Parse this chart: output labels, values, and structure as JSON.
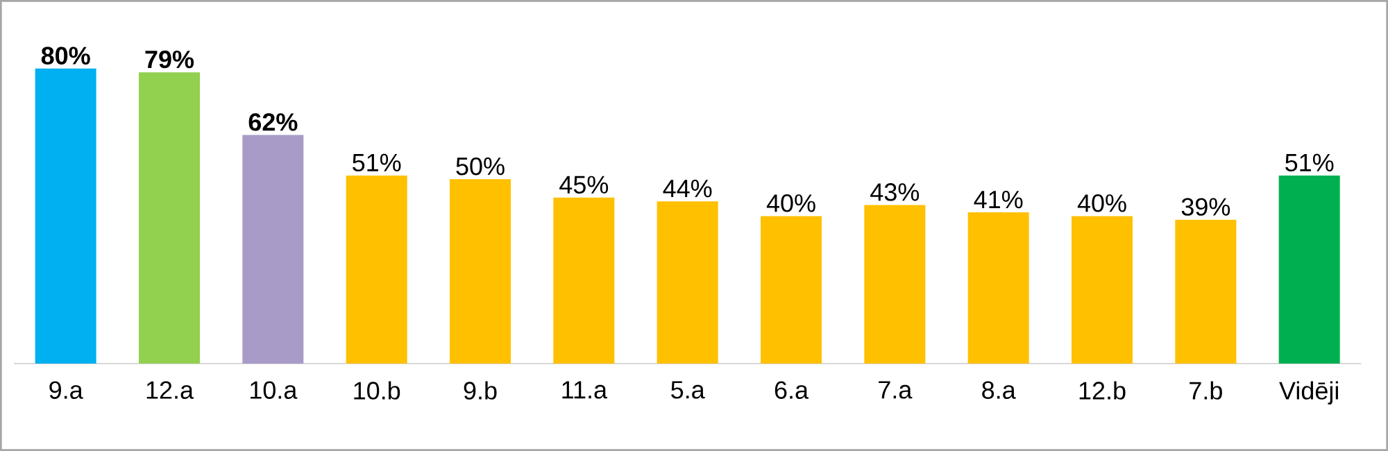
{
  "chart_data": {
    "type": "bar",
    "categories": [
      "9.a",
      "12.a",
      "10.a",
      "10.b",
      "9.b",
      "11.a",
      "5.a",
      "6.a",
      "7.a",
      "8.a",
      "12.b",
      "7.b",
      "Vidēji"
    ],
    "values": [
      80,
      79,
      62,
      51,
      50,
      45,
      44,
      40,
      43,
      41,
      40,
      39,
      51
    ],
    "colors": [
      "#00b0f0",
      "#92d050",
      "#a99bc7",
      "#ffc000",
      "#ffc000",
      "#ffc000",
      "#ffc000",
      "#ffc000",
      "#ffc000",
      "#ffc000",
      "#ffc000",
      "#ffc000",
      "#00b050"
    ],
    "value_labels": [
      "**80%**",
      "**79%**",
      "**62%**",
      "51%",
      "50%",
      "45%",
      "44%",
      "40%",
      "43%",
      "41%",
      "40%",
      "39%",
      "51%"
    ]
  }
}
